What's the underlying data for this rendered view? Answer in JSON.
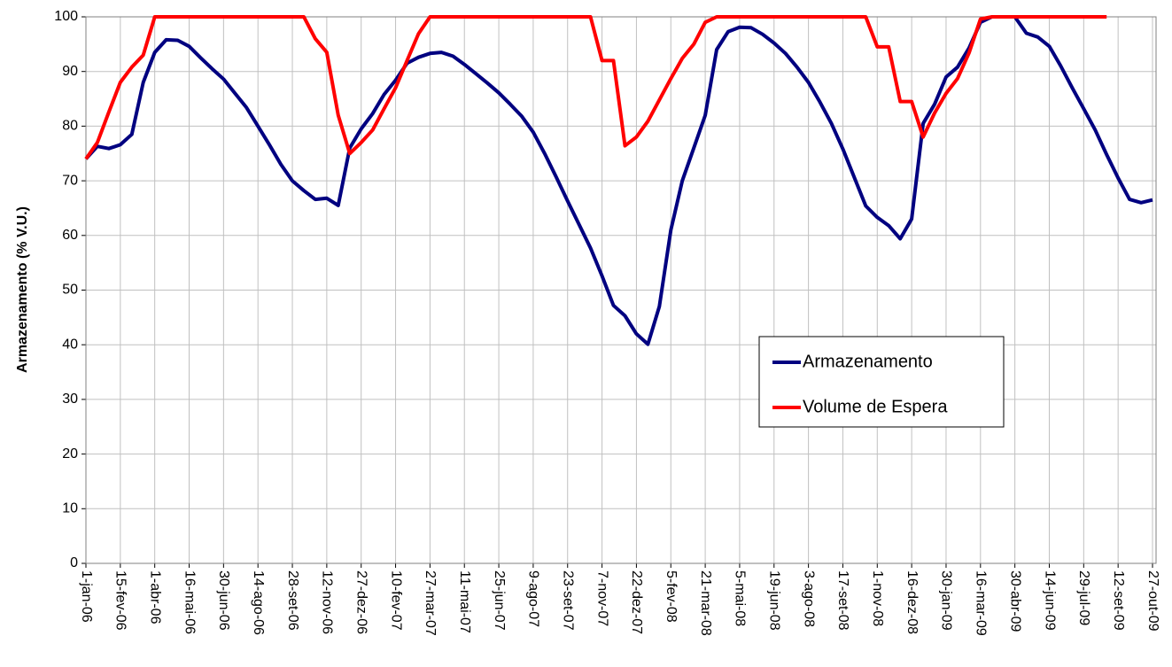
{
  "chart_data": {
    "type": "line",
    "ylabel": "Armazenamento (% V.U.)",
    "categories": [
      "1-jan-06",
      null,
      null,
      "15-fev-06",
      null,
      null,
      "1-abr-06",
      null,
      null,
      "16-mai-06",
      null,
      null,
      "30-jun-06",
      null,
      null,
      "14-ago-06",
      null,
      null,
      "28-set-06",
      null,
      null,
      "12-nov-06",
      null,
      null,
      "27-dez-06",
      null,
      null,
      "10-fev-07",
      null,
      null,
      "27-mar-07",
      null,
      null,
      "11-mai-07",
      null,
      null,
      "25-jun-07",
      null,
      null,
      "9-ago-07",
      null,
      null,
      "23-set-07",
      null,
      null,
      "7-nov-07",
      null,
      null,
      "22-dez-07",
      null,
      null,
      "5-fev-08",
      null,
      null,
      "21-mar-08",
      null,
      null,
      "5-mai-08",
      null,
      null,
      "19-jun-08",
      null,
      null,
      "3-ago-08",
      null,
      null,
      "17-set-08",
      null,
      null,
      "1-nov-08",
      null,
      null,
      "16-dez-08",
      null,
      null,
      "30-jan-09",
      null,
      null,
      "16-mar-09",
      null,
      null,
      "30-abr-09",
      null,
      null,
      "14-jun-09",
      null,
      null,
      "29-jul-09",
      null,
      null,
      "12-set-09",
      null,
      null,
      "27-out-09"
    ],
    "series": [
      {
        "name": "Armazenamento",
        "color": "#000080",
        "values": [
          74,
          76.3,
          75.9,
          76.6,
          78.5,
          88,
          93.5,
          95.8,
          95.7,
          94.6,
          92.5,
          90.5,
          88.6,
          86,
          83.4,
          80,
          76.6,
          73,
          70,
          68.2,
          66.6,
          66.8,
          65.5,
          76,
          79.5,
          82.3,
          85.8,
          88.4,
          91.5,
          92.6,
          93.3,
          93.5,
          92.8,
          91.3,
          89.6,
          87.9,
          86.1,
          84,
          81.8,
          78.9,
          75,
          70.7,
          66.3,
          62,
          57.7,
          52.6,
          47.2,
          45.3,
          42,
          40.1,
          47,
          61,
          70,
          76,
          82,
          94,
          97.3,
          98.1,
          98,
          96.8,
          95.2,
          93.3,
          90.8,
          88,
          84.4,
          80.5,
          75.8,
          70.6,
          65.4,
          63.3,
          61.8,
          59.4,
          63,
          80.5,
          84,
          89,
          90.8,
          94.3,
          99,
          100,
          100,
          100,
          97,
          96.3,
          94.6,
          91,
          87,
          83.2,
          79.3,
          74.8,
          70.5,
          66.6,
          66,
          66.5
        ]
      },
      {
        "name": "Volume de Espera",
        "color": "#ff0000",
        "values": [
          74,
          77,
          82.6,
          88,
          90.8,
          93,
          100,
          100,
          100,
          100,
          100,
          100,
          100,
          100,
          100,
          100,
          100,
          100,
          100,
          100,
          96,
          93.5,
          82,
          75,
          77,
          79.3,
          83.2,
          87,
          92,
          96.9,
          100,
          100,
          100,
          100,
          100,
          100,
          100,
          100,
          100,
          100,
          100,
          100,
          100,
          100,
          100,
          92,
          92,
          76.4,
          78,
          80.9,
          84.8,
          88.7,
          92.4,
          95,
          99,
          100,
          100,
          100,
          100,
          100,
          100,
          100,
          100,
          100,
          100,
          100,
          100,
          100,
          100,
          94.5,
          94.5,
          84.5,
          84.5,
          78,
          82.4,
          86,
          88.7,
          93.4,
          99.6,
          100,
          100,
          100,
          100,
          100,
          100,
          100,
          100,
          100,
          100,
          100,
          null,
          null,
          null,
          null
        ]
      }
    ],
    "ylim": [
      0,
      100
    ],
    "yticks": [
      0,
      10,
      20,
      30,
      40,
      50,
      60,
      70,
      80,
      90,
      100
    ],
    "grid": true
  }
}
